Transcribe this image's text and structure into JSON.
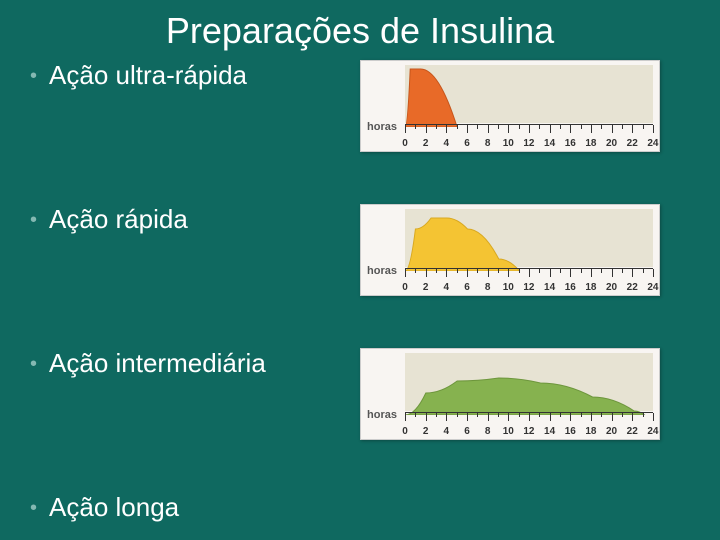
{
  "title": "Preparações de Insulina",
  "background_color": "#0f6960",
  "text_color": "#ffffff",
  "bullet_color": "#84b8b2",
  "axis": {
    "label": "horas",
    "xmin": 0,
    "xmax": 24,
    "major_tick_step": 2,
    "plot_bg": "#e7e3d3",
    "box_bg": "#f8f5f2",
    "tick_color": "#333333",
    "label_fontsize": 11
  },
  "items": [
    {
      "label": "Ação ultra-rápida",
      "has_chart": true,
      "curve": {
        "fill": "#e86a28",
        "stroke": "#c6551b",
        "points": [
          [
            0,
            0
          ],
          [
            0.5,
            58
          ],
          [
            1.5,
            58
          ],
          [
            5,
            0
          ]
        ]
      }
    },
    {
      "label": "Ação rápida",
      "has_chart": true,
      "curve": {
        "fill": "#f4c433",
        "stroke": "#d8a820",
        "points": [
          [
            0,
            0
          ],
          [
            1,
            42
          ],
          [
            2.5,
            53
          ],
          [
            4,
            53
          ],
          [
            6,
            42
          ],
          [
            9,
            12
          ],
          [
            11,
            0
          ]
        ]
      }
    },
    {
      "label": "Ação intermediária",
      "has_chart": true,
      "curve": {
        "fill": "#86b24f",
        "stroke": "#6d963c",
        "points": [
          [
            0,
            0
          ],
          [
            2,
            22
          ],
          [
            5,
            34
          ],
          [
            9,
            37
          ],
          [
            13,
            32
          ],
          [
            18,
            18
          ],
          [
            22,
            4
          ],
          [
            23,
            0
          ]
        ]
      }
    },
    {
      "label": "Ação longa",
      "has_chart": false
    }
  ]
}
